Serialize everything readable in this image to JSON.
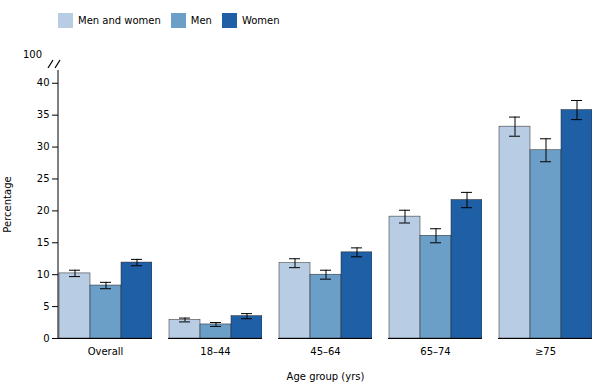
{
  "chart_data": {
    "type": "bar",
    "categories": [
      "Overall",
      "18–44",
      "45–64",
      "65–74",
      "≥75"
    ],
    "series": [
      {
        "name": "Men and women",
        "color": "#b8cce4",
        "values": [
          10.2,
          2.9,
          11.8,
          19.1,
          33.2
        ],
        "errors": [
          0.5,
          0.3,
          0.7,
          1.0,
          1.5
        ]
      },
      {
        "name": "Men",
        "color": "#6b9fc8",
        "values": [
          8.3,
          2.2,
          10.0,
          16.1,
          29.5
        ],
        "errors": [
          0.5,
          0.3,
          0.7,
          1.1,
          1.8
        ]
      },
      {
        "name": "Women",
        "color": "#1f5fa6",
        "values": [
          11.9,
          3.5,
          13.5,
          21.7,
          35.8
        ],
        "errors": [
          0.5,
          0.4,
          0.7,
          1.2,
          1.5
        ]
      }
    ],
    "xlabel": "Age group (yrs)",
    "ylabel": "Percentage",
    "ylim": [
      0,
      42
    ],
    "yticks": [
      0,
      5,
      10,
      15,
      20,
      25,
      30,
      35,
      40
    ],
    "legend": "upper left",
    "annotations": [
      "100"
    ]
  }
}
